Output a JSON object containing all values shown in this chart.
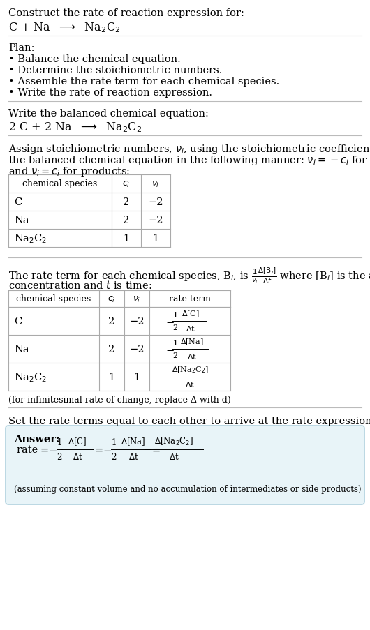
{
  "bg_color": "#ffffff",
  "text_color": "#000000",
  "title_line1": "Construct the rate of reaction expression for:",
  "title_line2_plain": "C + Na  ⟶  Na",
  "plan_header": "Plan:",
  "plan_items": [
    "• Balance the chemical equation.",
    "• Determine the stoichiometric numbers.",
    "• Assemble the rate term for each chemical species.",
    "• Write the rate of reaction expression."
  ],
  "balanced_header": "Write the balanced chemical equation:",
  "balanced_eq": "2 C + 2 Na  ⟶  Na",
  "assign_text1": "Assign stoichiometric numbers, $\\nu_i$, using the stoichiometric coefficients, $c_i$, from",
  "assign_text2": "the balanced chemical equation in the following manner: $\\nu_i = -c_i$ for reactants",
  "assign_text3": "and $\\nu_i = c_i$ for products:",
  "table1_headers": [
    "chemical species",
    "$c_i$",
    "$\\nu_i$"
  ],
  "table1_rows": [
    [
      "C",
      "2",
      "−2"
    ],
    [
      "Na",
      "2",
      "−2"
    ],
    [
      "Na₂C₂",
      "1",
      "1"
    ]
  ],
  "rate_text1": "The rate term for each chemical species, B$_i$, is $\\frac{1}{\\nu_i}\\frac{\\Delta[\\mathrm{B}_i]}{\\Delta t}$ where [B$_i$] is the amount",
  "rate_text2": "concentration and $t$ is time:",
  "table2_headers": [
    "chemical species",
    "$c_i$",
    "$\\nu_i$",
    "rate term"
  ],
  "table2_row_species": [
    "C",
    "Na",
    "Na₂C₂"
  ],
  "table2_row_ci": [
    "2",
    "2",
    "1"
  ],
  "table2_row_vi": [
    "−2",
    "−2",
    "1"
  ],
  "infinitesimal_note": "(for infinitesimal rate of change, replace Δ with d)",
  "set_rate_text": "Set the rate terms equal to each other to arrive at the rate expression:",
  "answer_box_color": "#e8f4f8",
  "answer_border_color": "#a0c8d8",
  "answer_label": "Answer:",
  "answer_note": "(assuming constant volume and no accumulation of intermediates or side products)"
}
